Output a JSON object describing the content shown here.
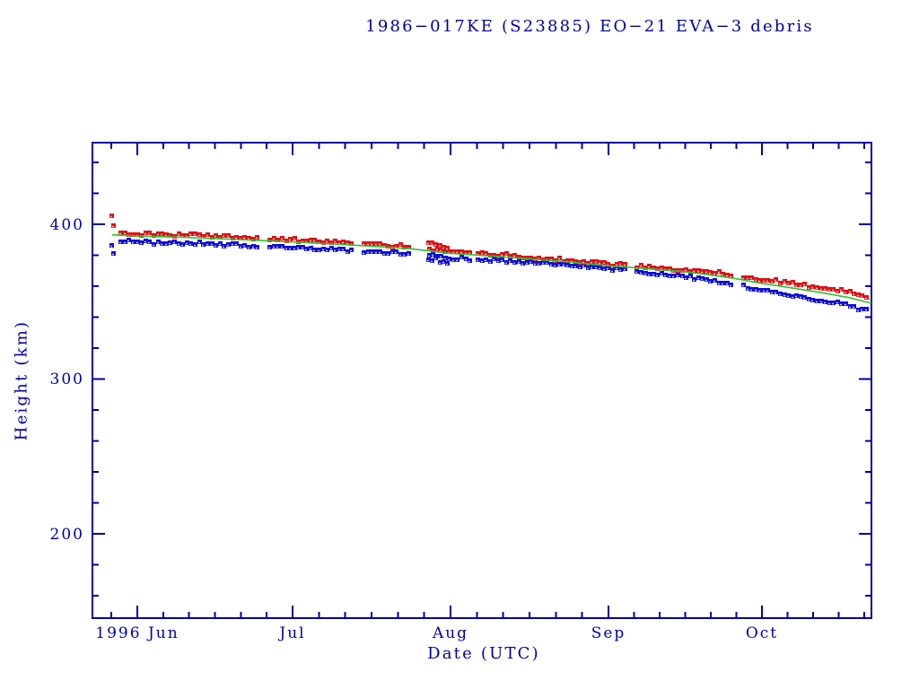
{
  "page": {
    "background": "#ffffff"
  },
  "chart_data": {
    "type": "scatter",
    "title": "1986−017KE (S23885) EO−21 EVA−3 debris",
    "xlabel": "Date (UTC)",
    "ylabel": "Height (km)",
    "legend": "none",
    "grid": false,
    "colors": {
      "axis": "#0000a0",
      "red_series": "#e01014",
      "blue_series": "#0f0fd8",
      "green_line": "#30c030"
    },
    "x_axis": {
      "months": [
        {
          "label": "1996 Jun",
          "day": 0
        },
        {
          "label": "Jul",
          "day": 30
        },
        {
          "label": "Aug",
          "day": 61
        },
        {
          "label": "Sep",
          "day": 92
        },
        {
          "label": "Oct",
          "day": 122
        }
      ],
      "next_month_day": 152,
      "minor_divisions_per_month": 6,
      "range_days": [
        -8.7,
        143.4
      ]
    },
    "y_axis": {
      "major_ticks": [
        200,
        300,
        400
      ],
      "minor_step": 20,
      "minor_range": [
        160,
        440
      ],
      "range_km": [
        145,
        453
      ]
    },
    "series": [
      {
        "name": "upper-band-red",
        "marker": "square",
        "color_key": "red_series",
        "anchors_day_km": [
          [
            -5,
            394.8
          ],
          [
            0,
            394.0
          ],
          [
            10,
            393.1
          ],
          [
            20,
            391.6
          ],
          [
            30,
            390.1
          ],
          [
            40,
            388.3
          ],
          [
            48,
            386.7
          ],
          [
            53,
            385.5
          ],
          [
            57,
            384.0
          ],
          [
            61,
            382.5
          ],
          [
            71,
            380.1
          ],
          [
            82,
            377.2
          ],
          [
            92,
            374.2
          ],
          [
            101,
            372.1
          ],
          [
            107,
            370.8
          ],
          [
            112,
            369.1
          ],
          [
            117,
            367.1
          ],
          [
            122,
            364.3
          ],
          [
            127,
            362.3
          ],
          [
            131,
            360.5
          ],
          [
            135,
            358.5
          ],
          [
            139,
            356.5
          ],
          [
            143,
            353.5
          ]
        ],
        "outliers_day_km": [
          [
            -4.9,
            405.5
          ],
          [
            -4.55,
            399.3
          ],
          [
            56.6,
            388.3
          ],
          [
            57.4,
            388.0
          ],
          [
            58.1,
            387.0
          ],
          [
            58.9,
            386.2
          ],
          [
            59.7,
            385.4
          ],
          [
            60.4,
            384.8
          ]
        ]
      },
      {
        "name": "lower-band-blue",
        "marker": "square",
        "color_key": "blue_series",
        "anchors_day_km": [
          [
            -5,
            389.0
          ],
          [
            0,
            388.4
          ],
          [
            10,
            387.7
          ],
          [
            20,
            386.6
          ],
          [
            30,
            385.0
          ],
          [
            40,
            383.5
          ],
          [
            48,
            382.0
          ],
          [
            53,
            381.0
          ],
          [
            57,
            379.5
          ],
          [
            61,
            378.0
          ],
          [
            71,
            376.2
          ],
          [
            82,
            373.9
          ],
          [
            92,
            371.0
          ],
          [
            101,
            368.3
          ],
          [
            107,
            366.4
          ],
          [
            112,
            363.8
          ],
          [
            117,
            360.7
          ],
          [
            122,
            357.6
          ],
          [
            127,
            354.7
          ],
          [
            131,
            352.4
          ],
          [
            135,
            349.9
          ],
          [
            139,
            347.2
          ],
          [
            143,
            343.4
          ]
        ],
        "outliers_day_km": [
          [
            -4.9,
            386.5
          ],
          [
            -4.55,
            381.0
          ],
          [
            56.6,
            377.3
          ],
          [
            57.4,
            376.6
          ],
          [
            58.1,
            378.0
          ],
          [
            58.9,
            375.5
          ],
          [
            59.7,
            376.2
          ],
          [
            60.4,
            374.9
          ]
        ]
      },
      {
        "name": "fit-line-green",
        "marker": "line",
        "color_key": "green_line",
        "anchors_day_km": [
          [
            -4.9,
            393.2
          ],
          [
            0,
            392.4
          ],
          [
            10,
            391.5
          ],
          [
            20,
            390.1
          ],
          [
            30,
            388.6
          ],
          [
            40,
            386.9
          ],
          [
            48,
            385.3
          ],
          [
            53,
            384.2
          ],
          [
            57,
            382.7
          ],
          [
            61,
            381.2
          ],
          [
            71,
            379.0
          ],
          [
            82,
            376.3
          ],
          [
            92,
            373.2
          ],
          [
            101,
            370.9
          ],
          [
            107,
            369.3
          ],
          [
            112,
            367.2
          ],
          [
            117,
            364.8
          ],
          [
            122,
            361.8
          ],
          [
            127,
            359.3
          ],
          [
            131,
            357.2
          ],
          [
            135,
            355.0
          ],
          [
            139,
            352.6
          ],
          [
            143.4,
            348.9
          ]
        ]
      }
    ],
    "sampling": {
      "start_day": -3.2,
      "end_day": 142.6,
      "step_days": 0.8,
      "jitter_km": 1.1,
      "gaps_day": [
        [
          23.3,
          25.2
        ],
        [
          41.8,
          43.2
        ],
        [
          53.2,
          56.5
        ],
        [
          64.8,
          66.2
        ],
        [
          95.8,
          97.3
        ],
        [
          116.6,
          118.3
        ]
      ]
    }
  }
}
